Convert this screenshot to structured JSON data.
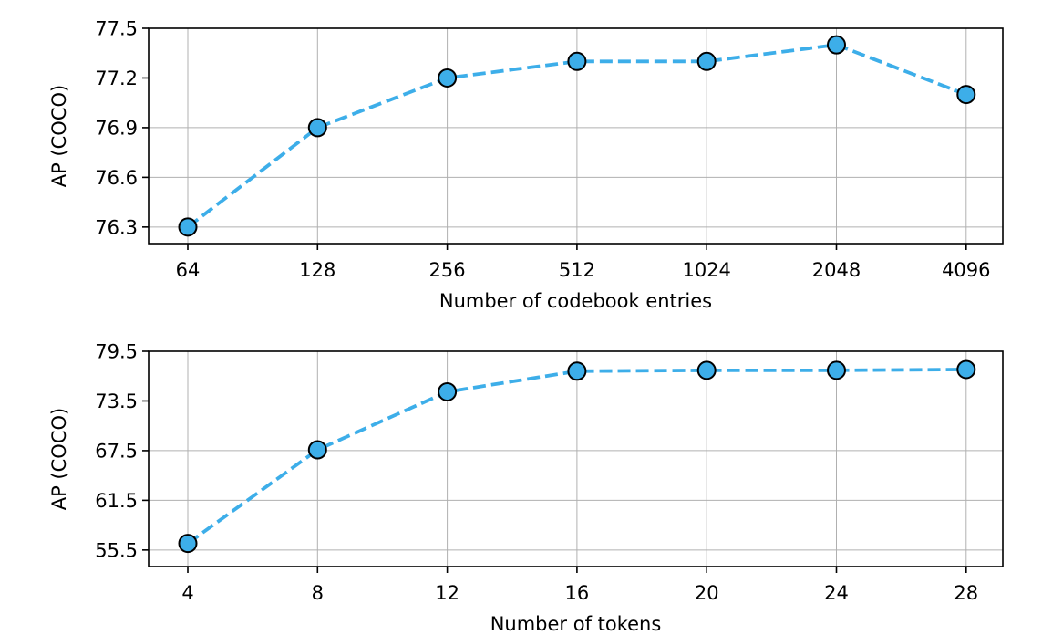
{
  "colors": {
    "series": "#3daee9",
    "marker_fill": "#3daee9",
    "marker_edge": "#000000",
    "grid": "#b0b0b0"
  },
  "chart_data": [
    {
      "type": "line",
      "categories": [
        "64",
        "128",
        "256",
        "512",
        "1024",
        "2048",
        "4096"
      ],
      "values": [
        76.3,
        76.9,
        77.2,
        77.3,
        77.3,
        77.4,
        77.1
      ],
      "xlabel": "Number of codebook entries",
      "ylabel": "AP (COCO)",
      "yticks": [
        "76.3",
        "76.6",
        "76.9",
        "77.2",
        "77.5"
      ],
      "ylim": [
        76.2,
        77.5
      ],
      "grid": true,
      "line_style": "dashed",
      "marker": "circle"
    },
    {
      "type": "line",
      "categories": [
        "4",
        "8",
        "12",
        "16",
        "20",
        "24",
        "28"
      ],
      "values": [
        56.3,
        67.6,
        74.6,
        77.1,
        77.2,
        77.2,
        77.3
      ],
      "xlabel": "Number of tokens",
      "ylabel": "AP (COCO)",
      "yticks": [
        "55.5",
        "61.5",
        "67.5",
        "73.5",
        "79.5"
      ],
      "ylim": [
        53.5,
        79.5
      ],
      "grid": true,
      "line_style": "dashed",
      "marker": "circle"
    }
  ]
}
